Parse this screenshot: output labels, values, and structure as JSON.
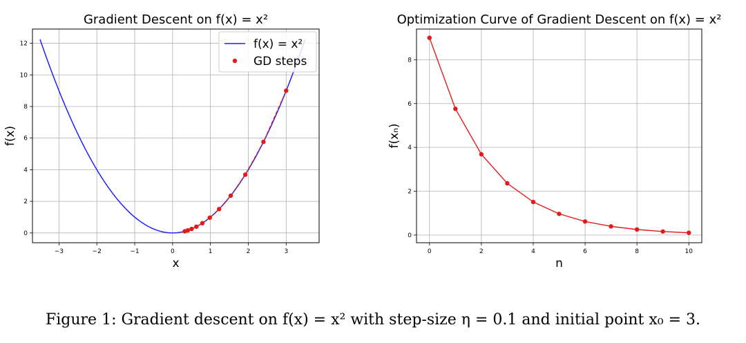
{
  "caption": "Figure 1: Gradient descent on f(x) = x² with step-size η = 0.1 and initial point x₀ = 3.",
  "colors": {
    "curve": "#1f1fff",
    "steps": "#e31a1c",
    "grid": "#b0b0b0"
  },
  "chart_data": [
    {
      "type": "line",
      "title": "Gradient Descent on f(x) = x²",
      "xlabel": "x",
      "ylabel": "f(x)",
      "xlim": [
        -3.7,
        3.87
      ],
      "ylim": [
        -0.62,
        12.9
      ],
      "xticks": [
        -3,
        -2,
        -1,
        0,
        1,
        2,
        3
      ],
      "yticks": [
        0,
        2,
        4,
        6,
        8,
        10,
        12
      ],
      "grid": true,
      "legend": {
        "placement": "top-right",
        "entries": [
          "f(x) = x²",
          "GD steps"
        ]
      },
      "series": [
        {
          "name": "f(x) = x²",
          "kind": "line",
          "function": "x^2",
          "x_range": [
            -3.5,
            3.5
          ],
          "color": "#1f1fff"
        },
        {
          "name": "GD steps",
          "kind": "line+scatter",
          "style": "dashed",
          "color": "#e31a1c",
          "x": [
            3.0,
            2.4,
            1.92,
            1.536,
            1.2288,
            0.983,
            0.7864,
            0.6291,
            0.5033,
            0.4027,
            0.3221
          ],
          "y": [
            9.0,
            5.76,
            3.6864,
            2.3593,
            1.5099,
            0.9664,
            0.6185,
            0.3958,
            0.2533,
            0.1621,
            0.1038
          ]
        }
      ]
    },
    {
      "type": "line",
      "title": "Optimization Curve of Gradient Descent on f(x) = x²",
      "xlabel": "n",
      "ylabel": "f(xₙ)",
      "xlim": [
        -0.5,
        10.5
      ],
      "ylim": [
        -0.35,
        9.4
      ],
      "xticks": [
        0,
        2,
        4,
        6,
        8,
        10
      ],
      "yticks": [
        0,
        2,
        4,
        6,
        8
      ],
      "grid": true,
      "series": [
        {
          "color": "#e31a1c",
          "x": [
            0,
            1,
            2,
            3,
            4,
            5,
            6,
            7,
            8,
            9,
            10
          ],
          "y": [
            9.0,
            5.76,
            3.6864,
            2.3593,
            1.5099,
            0.9664,
            0.6185,
            0.3958,
            0.2533,
            0.1621,
            0.1038
          ]
        }
      ]
    }
  ]
}
